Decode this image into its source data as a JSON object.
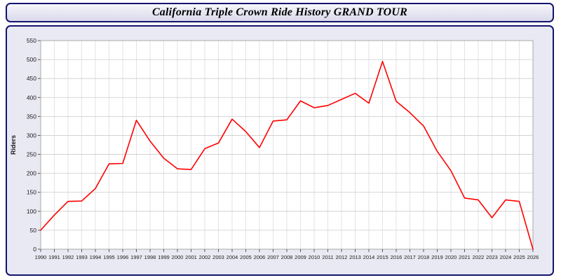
{
  "title": "California Triple Crown Ride History GRAND TOUR",
  "colors": {
    "line": "#ff0000",
    "panel_border": "#14146e",
    "panel_bg": "#e9e9f3",
    "plot_bg": "#ffffff",
    "grid_major": "#cccccc",
    "grid_minor": "#dcdce4",
    "tick": "#555555",
    "plot_border": "#aaaaaa"
  },
  "chart_data": {
    "type": "line",
    "title": "California Triple Crown Ride History GRAND TOUR",
    "xlabel": "",
    "ylabel": "Riders",
    "ylim": [
      0,
      550
    ],
    "ytick_step": 50,
    "grid": true,
    "legend_position": "none",
    "x": [
      1990,
      1991,
      1992,
      1993,
      1994,
      1995,
      1996,
      1997,
      1998,
      1999,
      2000,
      2001,
      2002,
      2003,
      2004,
      2005,
      2006,
      2007,
      2008,
      2009,
      2010,
      2011,
      2012,
      2013,
      2014,
      2015,
      2016,
      2017,
      2018,
      2019,
      2020,
      2021,
      2022,
      2023,
      2024,
      2025,
      2026
    ],
    "values": [
      50,
      90,
      126,
      127,
      160,
      225,
      226,
      340,
      285,
      240,
      212,
      210,
      265,
      280,
      343,
      310,
      268,
      338,
      341,
      391,
      373,
      379,
      395,
      411,
      385,
      495,
      390,
      360,
      325,
      258,
      207,
      135,
      130,
      83,
      130,
      126,
      0
    ]
  }
}
